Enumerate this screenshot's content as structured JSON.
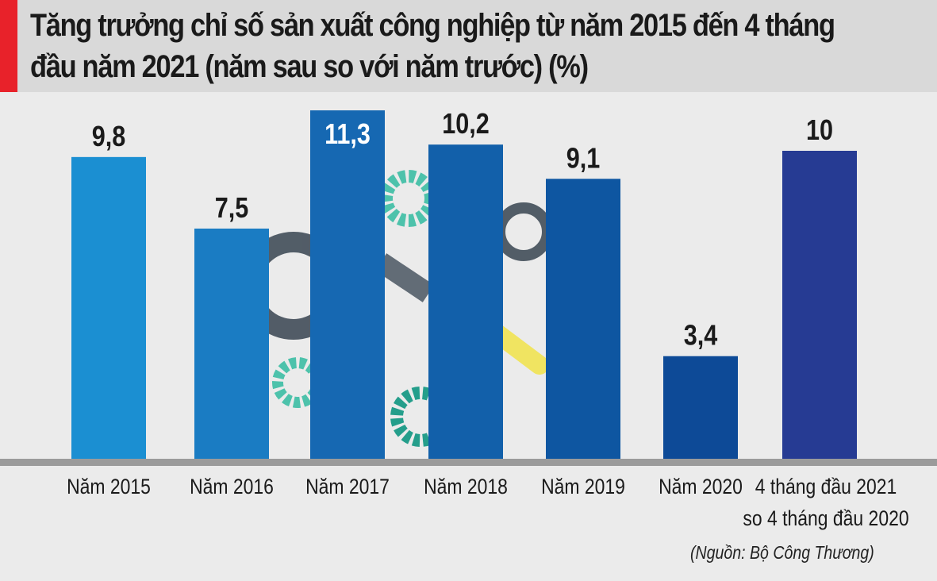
{
  "chart_data": {
    "type": "bar",
    "title": "Tăng trưởng chỉ số sản xuất công nghiệp từ năm 2015 đến 4 tháng đầu năm 2021 (năm sau so với năm trước) (%)",
    "title_lines": [
      "Tăng trưởng chỉ số sản xuất công nghiệp từ năm 2015 đến 4 tháng",
      "đầu năm 2021 (năm sau so với năm trước) (%)"
    ],
    "categories": [
      [
        "Năm 2015"
      ],
      [
        "Năm 2016"
      ],
      [
        "Năm 2017"
      ],
      [
        "Năm 2018"
      ],
      [
        "Năm 2019"
      ],
      [
        "Năm 2020"
      ],
      [
        "4 tháng đầu  2021",
        "so 4 tháng đầu 2020"
      ]
    ],
    "values": [
      9.8,
      7.5,
      11.3,
      10.2,
      9.1,
      3.4,
      10
    ],
    "data_labels": [
      "9,8",
      "7,5",
      "11,3",
      "10,2",
      "9,1",
      "3,4",
      "10"
    ],
    "bar_colors": [
      "#1b8fd2",
      "#1a7cc3",
      "#1668b2",
      "#1260aa",
      "#0e56a1",
      "#0d4a97",
      "#263b93"
    ],
    "ylim": [
      0,
      11.5
    ],
    "grid": false,
    "source": "(Nguồn: Bộ Công Thương)",
    "accent_color": "#e8222a"
  }
}
